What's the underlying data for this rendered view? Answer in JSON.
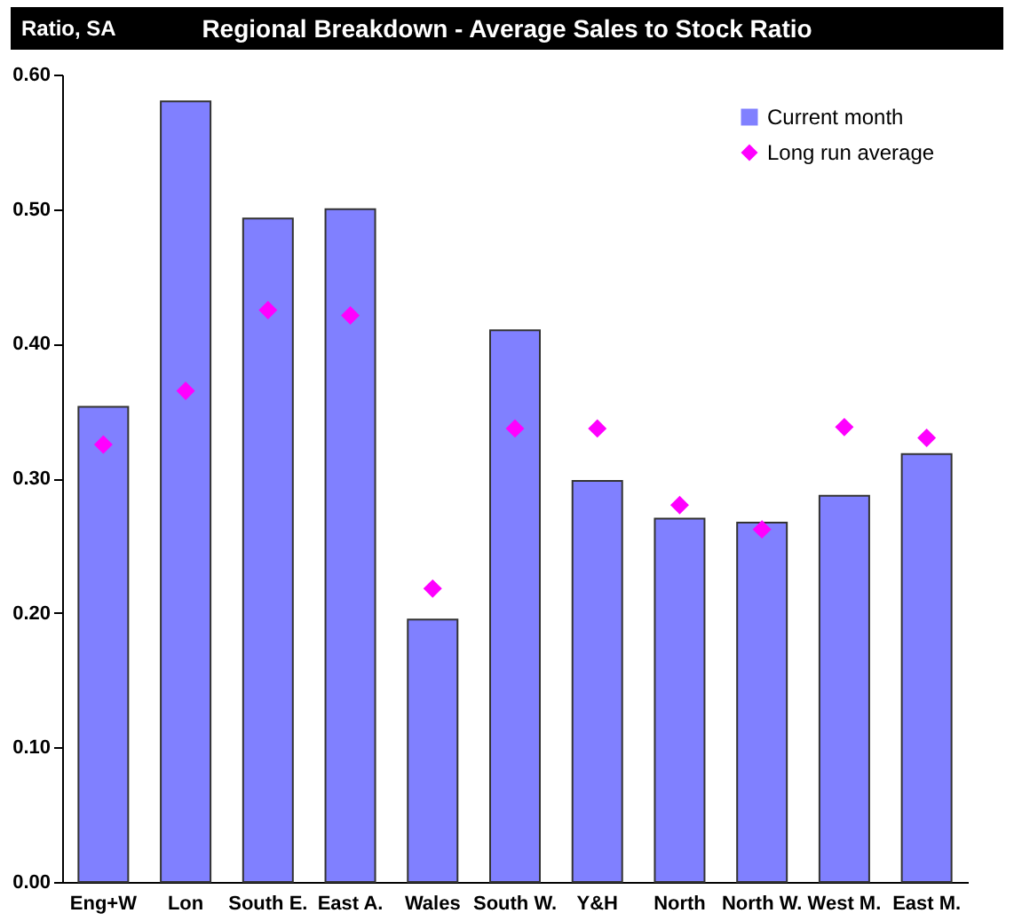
{
  "chart_data": {
    "type": "bar",
    "title": "Regional Breakdown - Average Sales to Stock Ratio",
    "ylabel": "Ratio, SA",
    "categories": [
      "Eng+W",
      "Lon",
      "South E.",
      "East A.",
      "Wales",
      "South W.",
      "Y&H",
      "North",
      "North W.",
      "West M.",
      "East M."
    ],
    "series": [
      {
        "name": "Current month",
        "color": "#8080ff",
        "values": [
          0.353,
          0.58,
          0.493,
          0.5,
          0.195,
          0.41,
          0.298,
          0.27,
          0.267,
          0.287,
          0.318
        ]
      },
      {
        "name": "Long run average",
        "type": "scatter",
        "marker": "diamond",
        "color": "#ff00ff",
        "values": [
          0.325,
          0.365,
          0.425,
          0.421,
          0.218,
          0.337,
          0.337,
          0.28,
          0.262,
          0.338,
          0.33
        ]
      }
    ],
    "ylim": [
      0,
      0.6
    ],
    "yticks": [
      {
        "value": 0,
        "label": "0.00"
      },
      {
        "value": 0.1,
        "label": "0.10"
      },
      {
        "value": 0.2,
        "label": "0.20"
      },
      {
        "value": 0.3,
        "label": "0.30"
      },
      {
        "value": 0.4,
        "label": "0.40"
      },
      {
        "value": 0.5,
        "label": "0.50"
      },
      {
        "value": 0.6,
        "label": "0.60"
      }
    ],
    "grid": false,
    "legend": "top right"
  }
}
